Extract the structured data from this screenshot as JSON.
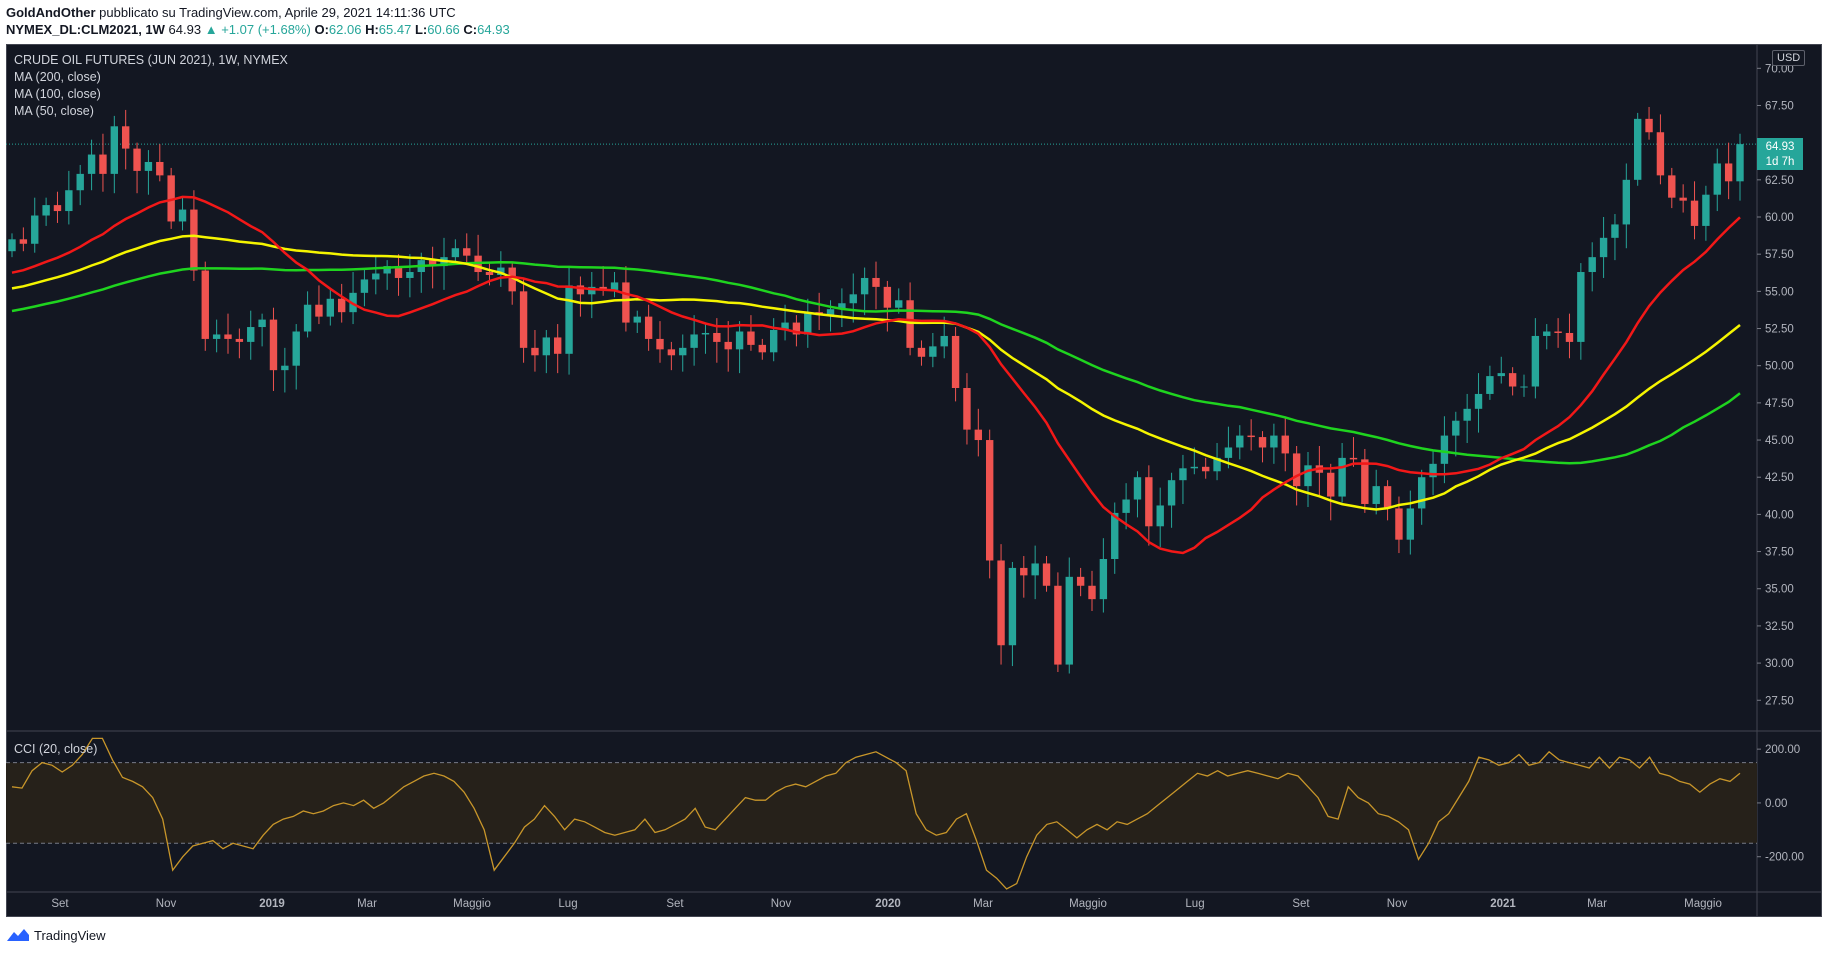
{
  "header": {
    "author": "GoldAndOther",
    "published": "pubblicato su TradingView.com, Aprile 29, 2021 14:11:36 UTC",
    "symbol": "NYMEX_DL:CLM2021, 1W",
    "last": "64.93",
    "change": "▲ +1.07 (+1.68%)",
    "o_label": "O:",
    "o_val": "62.06",
    "h_label": "H:",
    "h_val": "65.47",
    "l_label": "L:",
    "l_val": "60.66",
    "c_label": "C:",
    "c_val": "64.93"
  },
  "legend": {
    "title": "CRUDE OIL FUTURES (JUN 2021), 1W, NYMEX",
    "ma200": "MA (200, close)",
    "ma100": "MA (100, close)",
    "ma50": "MA (50, close)",
    "cci": "CCI (20, close)"
  },
  "currency": "USD",
  "price_tag": {
    "value": "64.93",
    "countdown": "1d 7h"
  },
  "footer": {
    "brand": "TradingView"
  },
  "colors": {
    "up": "#26a69a",
    "down": "#ef5350",
    "ma50": "#f21818",
    "ma100": "#f5f500",
    "ma200": "#1fd41f",
    "cci": "#c8962a",
    "bg": "#131722"
  },
  "chart_data": [
    {
      "type": "candlestick",
      "ylim": [
        25.5,
        71.5
      ],
      "y_ticks": [
        "70.00",
        "67.50",
        "62.50",
        "60.00",
        "57.50",
        "55.00",
        "52.50",
        "50.00",
        "47.50",
        "45.00",
        "42.50",
        "40.00",
        "37.50",
        "35.00",
        "32.50",
        "30.00",
        "27.50"
      ],
      "x_ticks": [
        "Set",
        "Nov",
        "2019",
        "Mar",
        "Maggio",
        "Lug",
        "Set",
        "Nov",
        "2020",
        "Mar",
        "Maggio",
        "Lug",
        "Set",
        "Nov",
        "2021",
        "Mar",
        "Maggio"
      ],
      "bold_ticks": [
        "2019",
        "2020",
        "2021"
      ],
      "closes": [
        58.5,
        58.2,
        60.1,
        60.8,
        60.4,
        61.8,
        62.9,
        64.2,
        62.9,
        66.1,
        64.6,
        63.1,
        63.7,
        62.8,
        59.7,
        60.5,
        56.4,
        51.8,
        52.1,
        51.8,
        51.6,
        52.6,
        53.1,
        49.7,
        50.0,
        52.3,
        54.1,
        53.3,
        54.5,
        53.6,
        54.9,
        55.8,
        56.2,
        56.7,
        55.9,
        56.3,
        57.1,
        56.7,
        57.3,
        57.9,
        57.4,
        56.3,
        56.1,
        56.6,
        55.0,
        51.2,
        50.7,
        51.9,
        50.8,
        55.4,
        54.8,
        55.3,
        55.1,
        55.6,
        52.9,
        53.3,
        51.8,
        51.1,
        50.7,
        51.2,
        52.1,
        52.2,
        51.6,
        51.1,
        52.3,
        51.4,
        50.9,
        52.4,
        52.9,
        52.1,
        53.6,
        53.4,
        53.8,
        54.2,
        54.8,
        55.9,
        55.3,
        53.9,
        54.4,
        51.2,
        50.6,
        51.3,
        52.0,
        48.5,
        45.7,
        45.0,
        36.9,
        31.2,
        36.4,
        35.9,
        36.7,
        35.2,
        29.9,
        35.8,
        35.2,
        34.3,
        37.0,
        40.1,
        41.0,
        42.5,
        39.2,
        40.6,
        42.3,
        43.1,
        43.2,
        42.9,
        43.8,
        44.5,
        45.3,
        45.2,
        44.5,
        45.3,
        44.1,
        41.9,
        43.3,
        42.8,
        41.2,
        43.8,
        43.7,
        40.7,
        41.9,
        40.4,
        38.3,
        40.4,
        42.5,
        43.4,
        45.3,
        46.3,
        47.1,
        48.1,
        49.3,
        49.5,
        48.6,
        48.6,
        52.0,
        52.3,
        52.2,
        51.6,
        56.3,
        57.3,
        58.6,
        59.5,
        62.5,
        66.6,
        65.7,
        62.8,
        61.3,
        61.1,
        59.4,
        61.5,
        63.6,
        62.4,
        64.9
      ],
      "moving_averages": {
        "ma50": "red",
        "ma100": "yellow",
        "ma200": "green"
      }
    },
    {
      "type": "line",
      "name": "CCI (20, close)",
      "ylim": [
        -320,
        260
      ],
      "y_ticks": [
        "200.00",
        "0.00",
        "-200.00"
      ],
      "bands": [
        150,
        -150
      ],
      "values": [
        60,
        55,
        120,
        150,
        140,
        115,
        140,
        180,
        240,
        240,
        160,
        95,
        80,
        60,
        20,
        -60,
        -250,
        -200,
        -160,
        -150,
        -140,
        -170,
        -150,
        -160,
        -170,
        -120,
        -80,
        -60,
        -50,
        -30,
        -40,
        -30,
        -10,
        0,
        -10,
        10,
        -20,
        0,
        30,
        60,
        80,
        100,
        110,
        100,
        80,
        40,
        -20,
        -100,
        -250,
        -200,
        -150,
        -90,
        -60,
        -10,
        -50,
        -100,
        -60,
        -70,
        -90,
        -110,
        -120,
        -110,
        -100,
        -60,
        -110,
        -100,
        -80,
        -60,
        -20,
        -90,
        -100,
        -60,
        -20,
        20,
        10,
        10,
        40,
        60,
        70,
        60,
        80,
        100,
        110,
        150,
        170,
        180,
        190,
        170,
        150,
        120,
        -40,
        -100,
        -120,
        -110,
        -60,
        -40,
        -140,
        -250,
        -280,
        -320,
        -300,
        -200,
        -120,
        -80,
        -70,
        -100,
        -130,
        -100,
        -80,
        -100,
        -70,
        -80,
        -60,
        -40,
        -10,
        20,
        50,
        80,
        110,
        100,
        120,
        100,
        110,
        120,
        110,
        100,
        90,
        110,
        100,
        60,
        20,
        -50,
        -60,
        60,
        20,
        0,
        -40,
        -50,
        -70,
        -100,
        -210,
        -150,
        -70,
        -40,
        20,
        80,
        170,
        160,
        140,
        150,
        180,
        140,
        150,
        190,
        160,
        150,
        140,
        130,
        170,
        130,
        170,
        160,
        130,
        170,
        110,
        100,
        80,
        70,
        40,
        70,
        90,
        80,
        110
      ]
    }
  ]
}
